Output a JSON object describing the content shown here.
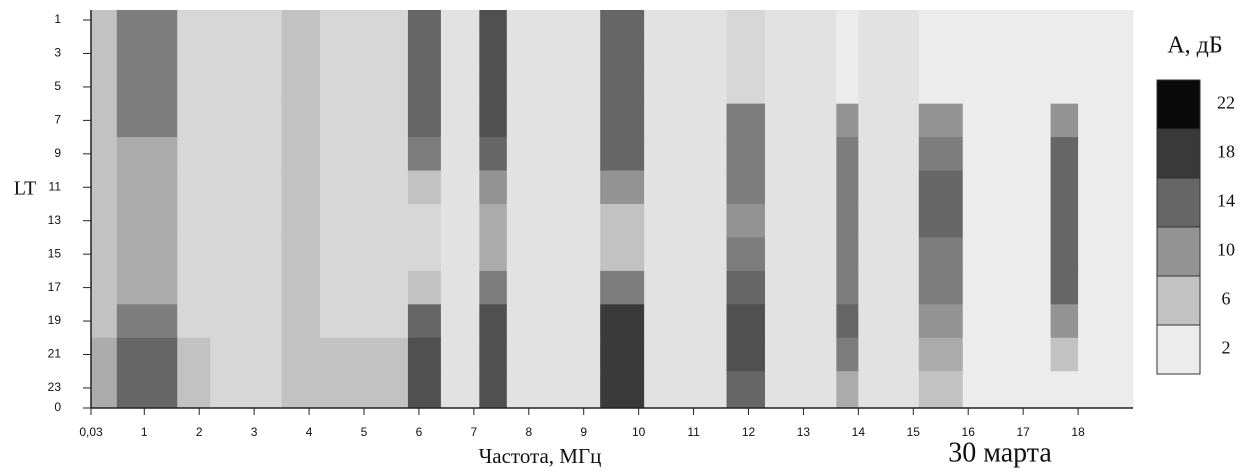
{
  "chart_data": {
    "type": "heatmap",
    "annotation": "30 марта",
    "x_label": "Частота, МГц",
    "y_label": "LT",
    "xlim": [
      0.03,
      19
    ],
    "xticks": [
      {
        "value": 0.03,
        "label": "0,03"
      },
      1,
      2,
      3,
      4,
      5,
      6,
      7,
      8,
      9,
      10,
      11,
      12,
      13,
      14,
      15,
      16,
      17,
      18
    ],
    "ylim": [
      24.2,
      0.4
    ],
    "yticks": [
      1,
      3,
      5,
      7,
      9,
      11,
      13,
      15,
      17,
      19,
      21,
      23,
      {
        "value": 24.2,
        "label": "0"
      }
    ],
    "xbins": [
      0.03,
      0.5,
      1.6,
      2.2,
      3.5,
      4.2,
      5.8,
      6.4,
      7.1,
      7.6,
      9.3,
      10.1,
      11.6,
      12.3,
      13.6,
      14.0,
      15.1,
      15.9,
      17.5,
      18.0,
      19
    ],
    "ybins": [
      0.4,
      2,
      4,
      6,
      8,
      10,
      12,
      14,
      16,
      18,
      20,
      22,
      24.2
    ],
    "z": [
      [
        6,
        12,
        4,
        4,
        6,
        4,
        14,
        3,
        16,
        3,
        14,
        3,
        4,
        3,
        2,
        3,
        2,
        2,
        2,
        2
      ],
      [
        6,
        12,
        4,
        4,
        6,
        4,
        14,
        3,
        16,
        3,
        14,
        3,
        4,
        3,
        2,
        3,
        2,
        2,
        2,
        2
      ],
      [
        6,
        12,
        4,
        4,
        6,
        4,
        14,
        3,
        16,
        3,
        14,
        3,
        4,
        3,
        2,
        3,
        2,
        2,
        2,
        2
      ],
      [
        6,
        12,
        4,
        4,
        6,
        4,
        14,
        3,
        16,
        3,
        14,
        3,
        12,
        3,
        10,
        3,
        10,
        2,
        10,
        2
      ],
      [
        6,
        8,
        4,
        4,
        6,
        4,
        12,
        3,
        14,
        3,
        14,
        3,
        12,
        3,
        12,
        3,
        12,
        2,
        14,
        2
      ],
      [
        6,
        8,
        4,
        4,
        6,
        4,
        6,
        3,
        10,
        3,
        10,
        3,
        12,
        3,
        12,
        3,
        14,
        2,
        14,
        2
      ],
      [
        6,
        8,
        4,
        4,
        6,
        4,
        4,
        3,
        8,
        3,
        6,
        3,
        10,
        3,
        12,
        3,
        14,
        2,
        14,
        2
      ],
      [
        6,
        8,
        4,
        4,
        6,
        4,
        4,
        3,
        8,
        3,
        6,
        3,
        12,
        3,
        12,
        3,
        12,
        2,
        14,
        2
      ],
      [
        6,
        8,
        4,
        4,
        6,
        4,
        6,
        3,
        12,
        3,
        12,
        3,
        14,
        3,
        12,
        3,
        12,
        2,
        14,
        2
      ],
      [
        6,
        12,
        4,
        4,
        6,
        4,
        14,
        3,
        16,
        3,
        18,
        3,
        16,
        3,
        14,
        3,
        10,
        2,
        10,
        2
      ],
      [
        8,
        14,
        6,
        4,
        6,
        6,
        16,
        3,
        16,
        3,
        18,
        3,
        16,
        3,
        12,
        3,
        8,
        2,
        6,
        2
      ],
      [
        8,
        14,
        6,
        4,
        6,
        6,
        16,
        3,
        16,
        3,
        18,
        3,
        14,
        3,
        8,
        3,
        6,
        2,
        2,
        2
      ]
    ],
    "colorbar": {
      "title": "A, дБ",
      "levels": [
        2,
        6,
        10,
        14,
        18,
        22
      ],
      "colors": [
        "#ececec",
        "#c2c2c2",
        "#939393",
        "#666666",
        "#3a3a3a",
        "#0a0a0a"
      ]
    }
  }
}
